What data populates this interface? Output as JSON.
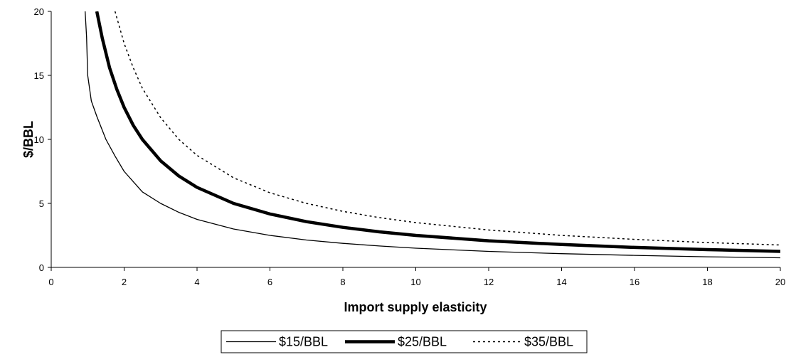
{
  "chart_data": {
    "type": "line",
    "title": "",
    "xlabel": "Import supply elasticity",
    "ylabel": "$/BBL",
    "xlim": [
      0,
      20
    ],
    "ylim": [
      0,
      20
    ],
    "x_ticks": [
      "0",
      "2",
      "4",
      "6",
      "8",
      "10",
      "12",
      "14",
      "16",
      "18",
      "20"
    ],
    "y_ticks": [
      "0",
      "5",
      "10",
      "15",
      "20"
    ],
    "grid": false,
    "legend_position": "bottom",
    "series": [
      {
        "name": "$15/BBL",
        "style": "thin-solid",
        "color": "#000000",
        "x": [
          0.93,
          0.97,
          1.0,
          1.1,
          1.25,
          1.5,
          1.75,
          2.0,
          2.5,
          3.0,
          3.5,
          4.0,
          5.0,
          6.0,
          7.0,
          8.0,
          9.0,
          10.0,
          12.0,
          14.0,
          16.0,
          18.0,
          20.0
        ],
        "y": [
          20.0,
          18.0,
          15.0,
          13.0,
          11.8,
          10.0,
          8.7,
          7.5,
          5.9,
          5.0,
          4.3,
          3.75,
          3.0,
          2.5,
          2.14,
          1.88,
          1.67,
          1.5,
          1.25,
          1.07,
          0.94,
          0.83,
          0.75
        ]
      },
      {
        "name": "$25/BBL",
        "style": "thick-solid",
        "color": "#000000",
        "x": [
          1.25,
          1.4,
          1.6,
          1.8,
          2.0,
          2.25,
          2.5,
          3.0,
          3.5,
          4.0,
          5.0,
          6.0,
          7.0,
          8.0,
          9.0,
          10.0,
          12.0,
          14.0,
          16.0,
          18.0,
          20.0
        ],
        "y": [
          20.0,
          17.9,
          15.6,
          13.9,
          12.5,
          11.1,
          10.0,
          8.33,
          7.14,
          6.25,
          5.0,
          4.17,
          3.57,
          3.13,
          2.78,
          2.5,
          2.08,
          1.79,
          1.56,
          1.39,
          1.25
        ]
      },
      {
        "name": "$35/BBL",
        "style": "dotted",
        "color": "#000000",
        "x": [
          1.75,
          2.0,
          2.25,
          2.5,
          3.0,
          3.5,
          4.0,
          5.0,
          6.0,
          7.0,
          8.0,
          9.0,
          10.0,
          12.0,
          14.0,
          16.0,
          18.0,
          20.0
        ],
        "y": [
          20.0,
          17.5,
          15.6,
          14.0,
          11.7,
          10.0,
          8.75,
          7.0,
          5.83,
          5.0,
          4.38,
          3.89,
          3.5,
          2.92,
          2.5,
          2.19,
          1.94,
          1.75
        ]
      }
    ]
  }
}
